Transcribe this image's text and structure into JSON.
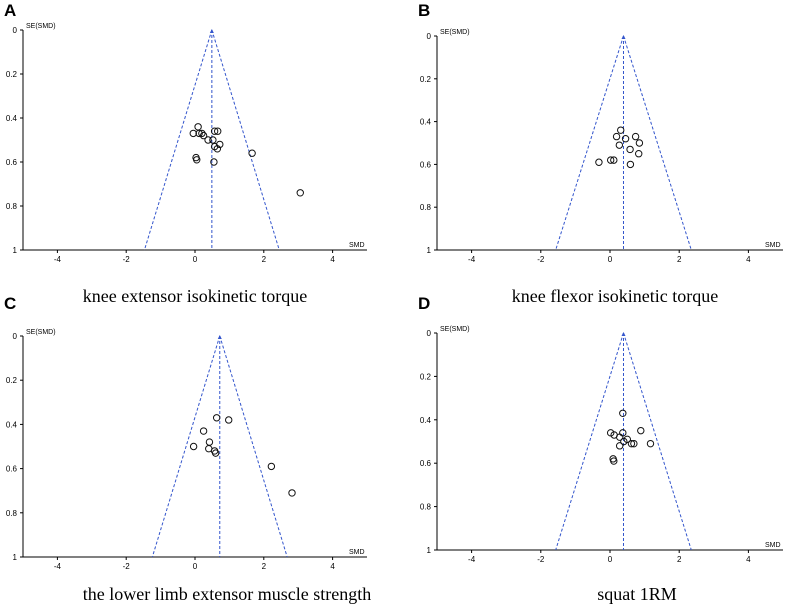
{
  "chart_data": [
    {
      "type": "scatter",
      "panel_label": "A",
      "caption": "knee extensor isokinetic torque",
      "xlabel": "SMD",
      "ylabel": "SE(SMD)",
      "xlim": [
        -5,
        5
      ],
      "ylim": [
        0,
        1
      ],
      "y_inverted": true,
      "x_ticks": [
        -4,
        -2,
        0,
        2,
        4
      ],
      "y_ticks": [
        0,
        0.2,
        0.4,
        0.6,
        0.8,
        1
      ],
      "pooled_estimate": 0.49,
      "funnel_lines": "dashed-blue",
      "points": [
        {
          "x": 0.09,
          "y": 0.44
        },
        {
          "x": 0.57,
          "y": 0.46
        },
        {
          "x": 0.66,
          "y": 0.46
        },
        {
          "x": -0.05,
          "y": 0.47
        },
        {
          "x": 0.12,
          "y": 0.47
        },
        {
          "x": 0.2,
          "y": 0.47
        },
        {
          "x": 0.25,
          "y": 0.48
        },
        {
          "x": 0.38,
          "y": 0.5
        },
        {
          "x": 0.52,
          "y": 0.5
        },
        {
          "x": 0.72,
          "y": 0.52
        },
        {
          "x": 0.57,
          "y": 0.53
        },
        {
          "x": 0.65,
          "y": 0.54
        },
        {
          "x": 1.66,
          "y": 0.56
        },
        {
          "x": 0.03,
          "y": 0.58
        },
        {
          "x": 0.05,
          "y": 0.59
        },
        {
          "x": 0.55,
          "y": 0.6
        },
        {
          "x": 3.06,
          "y": 0.74
        }
      ]
    },
    {
      "type": "scatter",
      "panel_label": "B",
      "caption": "knee flexor isokinetic torque",
      "xlabel": "SMD",
      "ylabel": "SE(SMD)",
      "xlim": [
        -5,
        5
      ],
      "ylim": [
        0,
        1
      ],
      "y_inverted": true,
      "x_ticks": [
        -4,
        -2,
        0,
        2,
        4
      ],
      "y_ticks": [
        0,
        0.2,
        0.4,
        0.6,
        0.8,
        1
      ],
      "pooled_estimate": 0.39,
      "funnel_lines": "dashed-blue",
      "points": [
        {
          "x": 0.31,
          "y": 0.44
        },
        {
          "x": 0.19,
          "y": 0.47
        },
        {
          "x": 0.74,
          "y": 0.47
        },
        {
          "x": 0.45,
          "y": 0.48
        },
        {
          "x": 0.85,
          "y": 0.5
        },
        {
          "x": 0.27,
          "y": 0.51
        },
        {
          "x": 0.58,
          "y": 0.53
        },
        {
          "x": 0.83,
          "y": 0.55
        },
        {
          "x": 0.02,
          "y": 0.58
        },
        {
          "x": 0.11,
          "y": 0.58
        },
        {
          "x": -0.32,
          "y": 0.59
        },
        {
          "x": 0.59,
          "y": 0.6
        }
      ]
    },
    {
      "type": "scatter",
      "panel_label": "C",
      "caption": "the lower limb extensor muscle strength",
      "xlabel": "SMD",
      "ylabel": "SE(SMD)",
      "xlim": [
        -5,
        5
      ],
      "ylim": [
        0,
        1
      ],
      "y_inverted": true,
      "x_ticks": [
        -4,
        -2,
        0,
        2,
        4
      ],
      "y_ticks": [
        0,
        0.2,
        0.4,
        0.6,
        0.8,
        1
      ],
      "pooled_estimate": 0.72,
      "funnel_lines": "dashed-blue",
      "points": [
        {
          "x": 0.63,
          "y": 0.37
        },
        {
          "x": 0.98,
          "y": 0.38
        },
        {
          "x": 0.25,
          "y": 0.43
        },
        {
          "x": 0.42,
          "y": 0.48
        },
        {
          "x": -0.04,
          "y": 0.5
        },
        {
          "x": 0.4,
          "y": 0.51
        },
        {
          "x": 0.57,
          "y": 0.52
        },
        {
          "x": 0.6,
          "y": 0.53
        },
        {
          "x": 2.22,
          "y": 0.59
        },
        {
          "x": 2.82,
          "y": 0.71
        }
      ]
    },
    {
      "type": "scatter",
      "panel_label": "D",
      "caption": "squat 1RM",
      "xlabel": "SMD",
      "ylabel": "SE(SMD)",
      "xlim": [
        -5,
        5
      ],
      "ylim": [
        0,
        1
      ],
      "y_inverted": true,
      "x_ticks": [
        -4,
        -2,
        0,
        2,
        4
      ],
      "y_ticks": [
        0,
        0.2,
        0.4,
        0.6,
        0.8,
        1
      ],
      "pooled_estimate": 0.39,
      "funnel_lines": "dashed-blue",
      "points": [
        {
          "x": 0.37,
          "y": 0.37
        },
        {
          "x": 0.89,
          "y": 0.45
        },
        {
          "x": 0.02,
          "y": 0.46
        },
        {
          "x": 0.37,
          "y": 0.46
        },
        {
          "x": 0.12,
          "y": 0.47
        },
        {
          "x": 0.28,
          "y": 0.48
        },
        {
          "x": 0.5,
          "y": 0.49
        },
        {
          "x": 0.4,
          "y": 0.5
        },
        {
          "x": 0.62,
          "y": 0.51
        },
        {
          "x": 0.69,
          "y": 0.51
        },
        {
          "x": 1.17,
          "y": 0.51
        },
        {
          "x": 0.28,
          "y": 0.52
        },
        {
          "x": 0.09,
          "y": 0.58
        },
        {
          "x": 0.11,
          "y": 0.59
        }
      ]
    }
  ]
}
